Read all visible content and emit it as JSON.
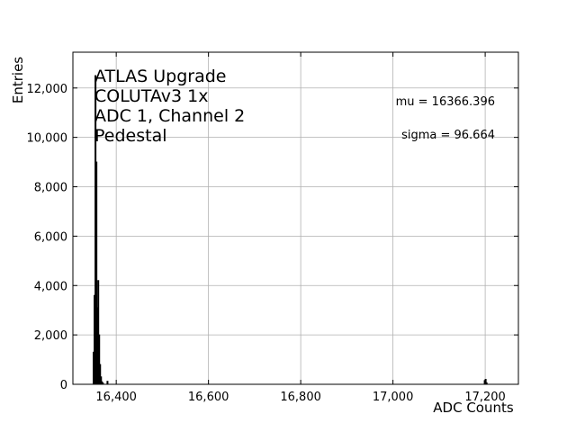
{
  "chart_data": {
    "type": "histogram",
    "x_label": "ADC Counts",
    "y_label": "Entries",
    "annotations": [
      "ATLAS Upgrade",
      "COLUTAv3 1x",
      "ADC 1, Channel 2",
      "Pedestal"
    ],
    "stats": [
      "mu = 16366.396",
      "sigma = 96.664"
    ],
    "bins": [
      16350,
      16352,
      16354,
      16356,
      16358,
      16360,
      16362,
      16364,
      16366,
      16368,
      16370,
      16372,
      16380,
      16382,
      17198,
      17200,
      17202,
      17204
    ],
    "counts": [
      1300,
      3600,
      12500,
      9000,
      3100,
      4200,
      2000,
      800,
      300,
      100,
      50,
      0,
      120,
      0,
      150,
      200,
      60
    ],
    "color": "#000000",
    "xlim": [
      16306,
      17272
    ],
    "ylim": [
      0,
      13450
    ],
    "xticks": [
      {
        "value": 16400,
        "label": "16,400"
      },
      {
        "value": 16600,
        "label": "16,600"
      },
      {
        "value": 16800,
        "label": "16,800"
      },
      {
        "value": 17000,
        "label": "17,000"
      },
      {
        "value": 17200,
        "label": "17,200"
      }
    ],
    "yticks": [
      0,
      {
        "value": 2000,
        "label": "2,000"
      },
      {
        "value": 4000,
        "label": "4,000"
      },
      {
        "value": 6000,
        "label": "6,000"
      },
      {
        "value": 8000,
        "label": "8,000"
      },
      {
        "value": 10000,
        "label": "10,000"
      },
      {
        "value": 12000,
        "label": "12,000"
      }
    ],
    "grid": true
  }
}
